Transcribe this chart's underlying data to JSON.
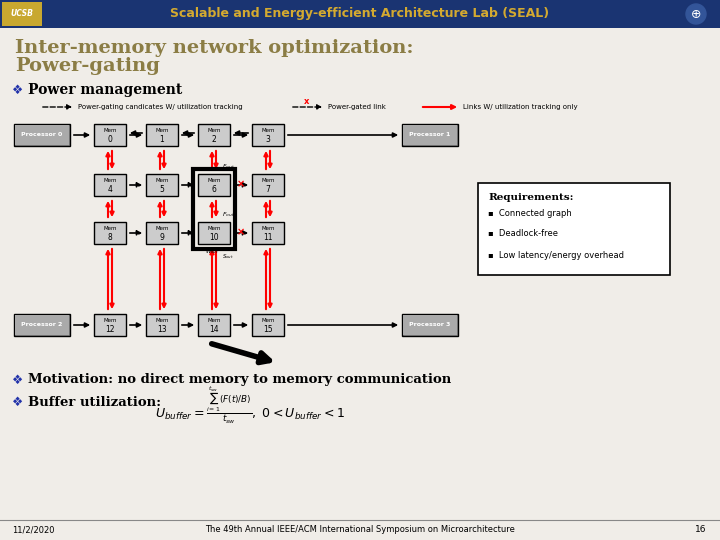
{
  "bg_color": "#f0ede8",
  "header_bg": "#1a3472",
  "header_text": "Scalable and Energy-efficient Architecture Lab (SEAL)",
  "header_text_color": "#d4aa30",
  "title_line1": "Inter-memory network optimization:",
  "title_line2": "Power-gating",
  "title_color": "#8b7d45",
  "bullet1": "Power management",
  "bullet2": "Motivation: no direct memory to memory communication",
  "bullet3": "Buffer utilization:",
  "footer_date": "11/2/2020",
  "footer_conf": "The 49th Annual IEEE/ACM International Symposium on Microarchitecture",
  "footer_page": "16",
  "req_title": "Requirements:",
  "req_items": [
    "Connected graph",
    "Deadlock-free",
    "Low latency/energy overhead"
  ],
  "legend_dashed_label": "Power-gating candicates W/ utilization tracking",
  "legend_x_label": "Power-gated link",
  "legend_solid_label": "Links W/ utilization tracking only"
}
